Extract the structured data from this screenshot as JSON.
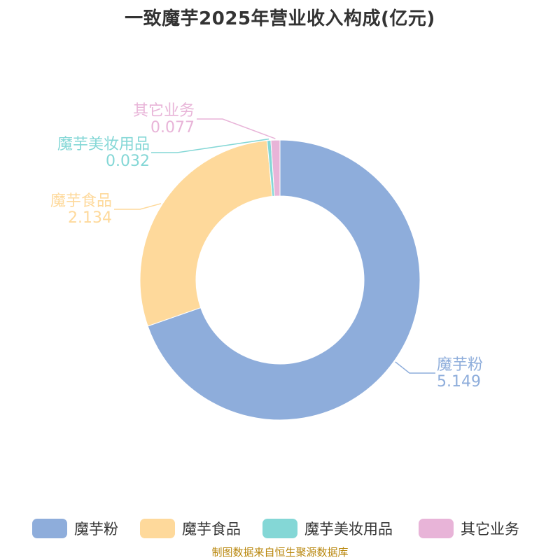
{
  "title": "一致魔芋2025年营业收入构成(亿元)",
  "source_note": "制图数据来自恒生聚源数据库",
  "chart_data": {
    "type": "pie",
    "variant": "donut",
    "title": "一致魔芋2025年营业收入构成(亿元)",
    "start": "12 o'clock, clockwise",
    "legend_position": "bottom",
    "slices": [
      {
        "label": "魔芋粉",
        "value": 5.149,
        "value_text": "5.149",
        "color": "#8eaddb"
      },
      {
        "label": "魔芋食品",
        "value": 2.134,
        "value_text": "2.134",
        "color": "#fed99b"
      },
      {
        "label": "魔芋美妆用品",
        "value": 0.032,
        "value_text": "0.032",
        "color": "#84d7d6"
      },
      {
        "label": "其它业务",
        "value": 0.077,
        "value_text": "0.077",
        "color": "#e8b4d8"
      }
    ]
  },
  "legend": {
    "items": [
      {
        "label": "魔芋粉",
        "color": "#8eaddb"
      },
      {
        "label": "魔芋食品",
        "color": "#fed99b"
      },
      {
        "label": "魔芋美妆用品",
        "color": "#84d7d6"
      },
      {
        "label": "其它业务",
        "color": "#e8b4d8"
      }
    ]
  }
}
